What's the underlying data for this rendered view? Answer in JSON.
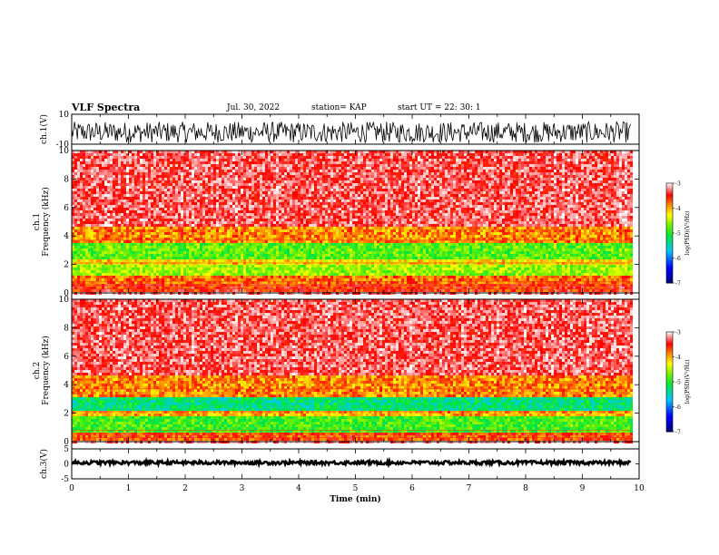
{
  "header": {
    "title": "VLF Spectra",
    "date": "Jul. 30, 2022",
    "station": "station= KAP",
    "start": "start UT =  22: 30: 1"
  },
  "chart_data": [
    {
      "type": "line",
      "title": "",
      "ylabel": "ch.1(V)",
      "ylim": [
        -10,
        10
      ],
      "yticks": [
        "10",
        "-10"
      ],
      "x_range_min": [
        0,
        9.85
      ],
      "series": [
        {
          "values_note_free": true,
          "level_mean": -2,
          "level_spread": 7
        }
      ]
    },
    {
      "type": "heatmap",
      "ylabel": "ch.1\nFrequency (kHz)",
      "ylim": [
        0,
        10
      ],
      "yticks": [
        "0",
        "2",
        "4",
        "6",
        "8",
        "10"
      ],
      "x_range_min": [
        0,
        9.85
      ],
      "bands_khz": [
        {
          "from": 0.0,
          "to": 0.6,
          "level": -3.6
        },
        {
          "from": 0.6,
          "to": 1.2,
          "level": -3.8
        },
        {
          "from": 1.2,
          "to": 2.0,
          "level": -4.6
        },
        {
          "from": 2.0,
          "to": 2.4,
          "level": -4.2
        },
        {
          "from": 2.4,
          "to": 3.5,
          "level": -4.8
        },
        {
          "from": 3.5,
          "to": 4.6,
          "level": -3.9
        },
        {
          "from": 4.6,
          "to": 10.0,
          "level": -3.2
        }
      ],
      "colorbar": {
        "label": "log(PSD)(V²/Hz)",
        "ticks": [
          "-3",
          "-4",
          "-5",
          "-6",
          "-7"
        ],
        "range": [
          -7,
          -3
        ]
      }
    },
    {
      "type": "heatmap",
      "ylabel": "ch.2\nFrequency (kHz)",
      "ylim": [
        0,
        10
      ],
      "yticks": [
        "0",
        "2",
        "4",
        "6",
        "8",
        "10"
      ],
      "x_range_min": [
        0,
        9.85
      ],
      "bands_khz": [
        {
          "from": 0.0,
          "to": 0.6,
          "level": -3.7
        },
        {
          "from": 0.6,
          "to": 1.8,
          "level": -4.9
        },
        {
          "from": 1.8,
          "to": 2.1,
          "level": -4.0
        },
        {
          "from": 2.1,
          "to": 3.2,
          "level": -5.3
        },
        {
          "from": 3.2,
          "to": 4.6,
          "level": -3.9
        },
        {
          "from": 4.6,
          "to": 10.0,
          "level": -3.2
        }
      ],
      "colorbar": {
        "label": "log(PSD)(V²/Hz)",
        "ticks": [
          "-3",
          "-4",
          "-5",
          "-6",
          "-7"
        ],
        "range": [
          -7,
          -3
        ]
      }
    },
    {
      "type": "line",
      "ylabel": "ch.3(V)",
      "ylim": [
        -5,
        5
      ],
      "yticks": [
        "5",
        "0",
        "-5"
      ],
      "x_range_min": [
        0,
        9.85
      ],
      "series": [
        {
          "level_mean": 0.4,
          "level_spread": 0.6
        }
      ]
    }
  ],
  "xaxis": {
    "label": "Time (min)",
    "xlim": [
      0,
      10
    ],
    "ticks": [
      "0",
      "1",
      "2",
      "3",
      "4",
      "5",
      "6",
      "7",
      "8",
      "9",
      "10"
    ]
  },
  "colors": {
    "trace": "#000000",
    "axis": "#000000"
  }
}
